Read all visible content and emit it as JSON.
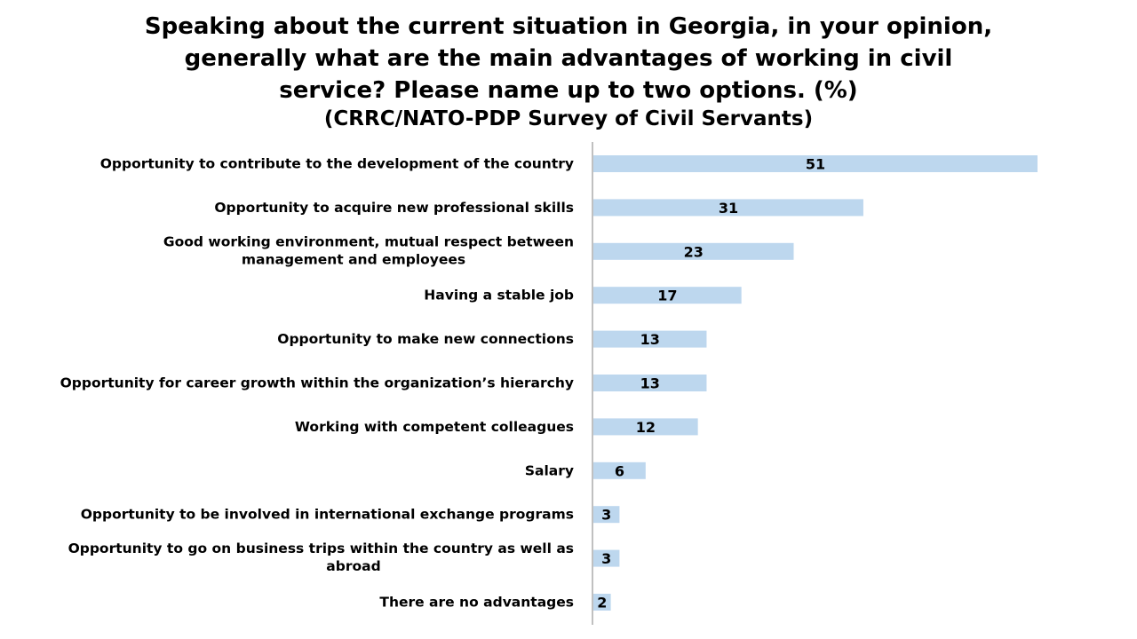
{
  "chart_data": {
    "type": "bar",
    "orientation": "horizontal",
    "title_lines": [
      "Speaking about the current situation in Georgia, in your opinion,",
      "generally what are the main advantages of working in civil",
      "service? Please name up to two options. (%)"
    ],
    "subtitle": "(CRRC/NATO-PDP Survey of Civil Servants)",
    "categories": [
      [
        "Opportunity to contribute to the development of the country"
      ],
      [
        "Opportunity to acquire new professional skills"
      ],
      [
        "Good working environment, mutual respect between",
        "management and employees"
      ],
      [
        "Having a stable job"
      ],
      [
        "Opportunity to make new connections"
      ],
      [
        "Opportunity for career growth within the organization’s hierarchy"
      ],
      [
        "Working with competent colleagues"
      ],
      [
        "Salary"
      ],
      [
        "Opportunity to be involved in international exchange programs"
      ],
      [
        "Opportunity to go on business trips within the country as well as",
        "abroad"
      ],
      [
        "There are no advantages"
      ]
    ],
    "values": [
      51,
      31,
      23,
      17,
      13,
      13,
      12,
      6,
      3,
      3,
      2
    ],
    "bar_color": "#BDD7EE",
    "axis_color": "#808080",
    "xlim": [
      0,
      60
    ],
    "grid": false,
    "legend": "none"
  }
}
